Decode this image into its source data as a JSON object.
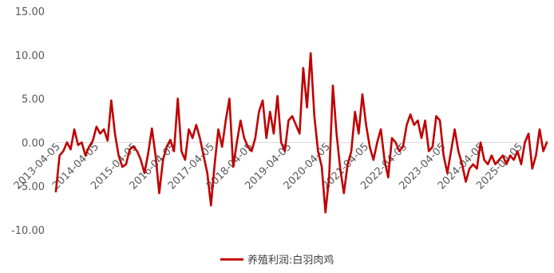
{
  "chart_data": {
    "type": "line",
    "title": "",
    "xlabel": "",
    "ylabel": "",
    "ylim": [
      -10,
      15
    ],
    "y_ticks": [
      "15.00",
      "10.00",
      "5.00",
      "0.00",
      "-5.00",
      "-10.00"
    ],
    "x_tick_labels": [
      "2013-04-05",
      "2014-04-05",
      "2015-04-05",
      "2016-04-05",
      "2017-04-05",
      "2018-04-05",
      "2019-04-05",
      "2020-04-05",
      "2021-04-05",
      "2022-04-05",
      "2023-04-05",
      "2024-04-05",
      "2025-04-05"
    ],
    "x_range": [
      "2013-04-05",
      "2025-12-31"
    ],
    "grid": false,
    "legend_position": "bottom",
    "series": [
      {
        "name": "养殖利润:白羽肉鸡",
        "color": "#C00000",
        "points": [
          [
            "2013-04-05",
            -5.6
          ],
          [
            "2013-05-10",
            -1.5
          ],
          [
            "2013-06-14",
            -1.0
          ],
          [
            "2013-07-19",
            0.0
          ],
          [
            "2013-08-23",
            -0.8
          ],
          [
            "2013-09-27",
            1.5
          ],
          [
            "2013-11-01",
            -0.3
          ],
          [
            "2013-12-06",
            0.0
          ],
          [
            "2014-01-10",
            -1.5
          ],
          [
            "2014-02-14",
            -0.5
          ],
          [
            "2014-03-21",
            0.2
          ],
          [
            "2014-04-25",
            1.8
          ],
          [
            "2014-05-30",
            1.0
          ],
          [
            "2014-07-04",
            1.5
          ],
          [
            "2014-08-08",
            0.2
          ],
          [
            "2014-09-12",
            4.8
          ],
          [
            "2014-10-17",
            1.0
          ],
          [
            "2014-11-21",
            -1.5
          ],
          [
            "2014-12-26",
            -2.8
          ],
          [
            "2015-01-30",
            -2.5
          ],
          [
            "2015-03-06",
            -0.8
          ],
          [
            "2015-04-10",
            -0.5
          ],
          [
            "2015-05-15",
            -1.0
          ],
          [
            "2015-06-19",
            -2.0
          ],
          [
            "2015-07-24",
            -3.5
          ],
          [
            "2015-08-28",
            -1.2
          ],
          [
            "2015-10-02",
            1.6
          ],
          [
            "2015-11-06",
            -1.5
          ],
          [
            "2015-12-11",
            -5.8
          ],
          [
            "2016-01-15",
            -2.0
          ],
          [
            "2016-02-19",
            -0.5
          ],
          [
            "2016-03-25",
            0.3
          ],
          [
            "2016-04-29",
            -1.0
          ],
          [
            "2016-06-03",
            5.0
          ],
          [
            "2016-07-08",
            -1.0
          ],
          [
            "2016-08-12",
            -2.0
          ],
          [
            "2016-09-16",
            1.5
          ],
          [
            "2016-10-21",
            0.5
          ],
          [
            "2016-11-25",
            2.0
          ],
          [
            "2016-12-30",
            0.5
          ],
          [
            "2017-02-03",
            -1.5
          ],
          [
            "2017-03-10",
            -3.5
          ],
          [
            "2017-04-14",
            -7.2
          ],
          [
            "2017-05-19",
            -2.5
          ],
          [
            "2017-06-23",
            1.5
          ],
          [
            "2017-07-28",
            -0.5
          ],
          [
            "2017-09-01",
            2.5
          ],
          [
            "2017-10-06",
            5.0
          ],
          [
            "2017-11-10",
            -2.8
          ],
          [
            "2017-12-15",
            0.0
          ],
          [
            "2018-01-19",
            2.5
          ],
          [
            "2018-02-23",
            0.5
          ],
          [
            "2018-03-30",
            -0.5
          ],
          [
            "2018-05-04",
            -1.0
          ],
          [
            "2018-06-08",
            0.5
          ],
          [
            "2018-07-13",
            3.5
          ],
          [
            "2018-08-17",
            4.8
          ],
          [
            "2018-09-21",
            0.5
          ],
          [
            "2018-10-26",
            3.5
          ],
          [
            "2018-11-30",
            1.0
          ],
          [
            "2019-01-04",
            5.3
          ],
          [
            "2019-02-08",
            0.0
          ],
          [
            "2019-03-15",
            -1.0
          ],
          [
            "2019-04-19",
            2.5
          ],
          [
            "2019-05-24",
            3.0
          ],
          [
            "2019-06-28",
            2.0
          ],
          [
            "2019-08-02",
            1.0
          ],
          [
            "2019-09-06",
            8.5
          ],
          [
            "2019-10-11",
            4.0
          ],
          [
            "2019-11-15",
            10.2
          ],
          [
            "2019-12-20",
            3.0
          ],
          [
            "2020-01-24",
            -1.0
          ],
          [
            "2020-02-28",
            -2.8
          ],
          [
            "2020-04-03",
            -8.0
          ],
          [
            "2020-05-08",
            -4.0
          ],
          [
            "2020-06-12",
            6.5
          ],
          [
            "2020-07-17",
            1.0
          ],
          [
            "2020-08-21",
            -3.0
          ],
          [
            "2020-09-25",
            -5.8
          ],
          [
            "2020-10-30",
            -2.5
          ],
          [
            "2020-12-04",
            -1.0
          ],
          [
            "2021-01-08",
            3.5
          ],
          [
            "2021-02-12",
            1.0
          ],
          [
            "2021-03-19",
            5.5
          ],
          [
            "2021-04-23",
            2.0
          ],
          [
            "2021-05-28",
            -0.5
          ],
          [
            "2021-07-02",
            -2.0
          ],
          [
            "2021-08-06",
            0.0
          ],
          [
            "2021-09-10",
            1.5
          ],
          [
            "2021-10-15",
            -2.0
          ],
          [
            "2021-11-19",
            -4.0
          ],
          [
            "2021-12-24",
            0.5
          ],
          [
            "2022-01-28",
            0.0
          ],
          [
            "2022-03-04",
            -1.0
          ],
          [
            "2022-04-08",
            -0.5
          ],
          [
            "2022-05-13",
            2.0
          ],
          [
            "2022-06-17",
            3.2
          ],
          [
            "2022-07-22",
            2.0
          ],
          [
            "2022-08-26",
            2.5
          ],
          [
            "2022-09-30",
            0.5
          ],
          [
            "2022-11-04",
            2.5
          ],
          [
            "2022-12-09",
            -1.0
          ],
          [
            "2023-01-13",
            -0.5
          ],
          [
            "2023-02-17",
            3.0
          ],
          [
            "2023-03-24",
            2.5
          ],
          [
            "2023-04-28",
            -1.5
          ],
          [
            "2023-06-02",
            -3.5
          ],
          [
            "2023-07-07",
            -1.0
          ],
          [
            "2023-08-11",
            1.5
          ],
          [
            "2023-09-15",
            -1.0
          ],
          [
            "2023-10-20",
            -2.5
          ],
          [
            "2023-11-24",
            -4.5
          ],
          [
            "2023-12-29",
            -3.0
          ],
          [
            "2024-02-02",
            -2.5
          ],
          [
            "2024-03-08",
            -3.0
          ],
          [
            "2024-04-12",
            0.0
          ],
          [
            "2024-05-17",
            -2.0
          ],
          [
            "2024-06-21",
            -2.5
          ],
          [
            "2024-07-26",
            -1.5
          ],
          [
            "2024-08-30",
            -2.5
          ],
          [
            "2024-10-04",
            -2.0
          ],
          [
            "2024-11-08",
            -1.5
          ],
          [
            "2024-12-13",
            -2.5
          ],
          [
            "2025-01-17",
            -1.5
          ],
          [
            "2025-02-21",
            -2.0
          ],
          [
            "2025-03-28",
            -1.0
          ],
          [
            "2025-05-02",
            -2.5
          ],
          [
            "2025-06-06",
            0.0
          ],
          [
            "2025-07-11",
            1.0
          ],
          [
            "2025-08-15",
            -3.0
          ],
          [
            "2025-09-19",
            -1.5
          ],
          [
            "2025-10-24",
            1.5
          ],
          [
            "2025-11-28",
            -1.0
          ],
          [
            "2025-12-31",
            0.0
          ]
        ]
      }
    ]
  }
}
